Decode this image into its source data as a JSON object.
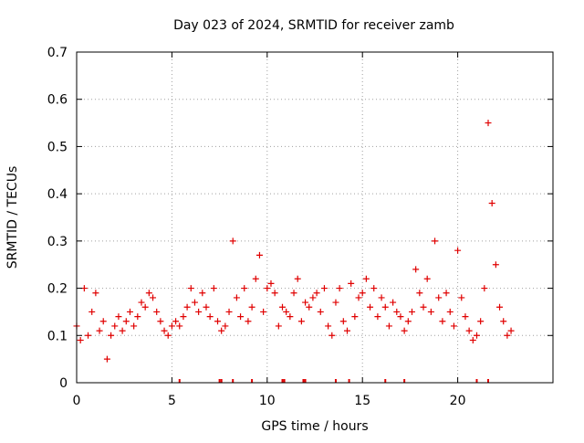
{
  "chart_data": {
    "type": "scatter",
    "title": "Day 023 of 2024, SRMTID for receiver zamb",
    "xlabel": "GPS time / hours",
    "ylabel": "SRMTID / TECUs",
    "xlim": [
      0,
      25
    ],
    "ylim": [
      0,
      0.7
    ],
    "x_ticks": [
      0,
      5,
      10,
      15,
      20
    ],
    "x_tick_labels": [
      "0",
      "5",
      "10",
      "15",
      "20"
    ],
    "y_ticks": [
      0,
      0.1,
      0.2,
      0.3,
      0.4,
      0.5,
      0.6,
      0.7
    ],
    "y_tick_labels": [
      "0",
      "0.1",
      "0.2",
      "0.3",
      "0.4",
      "0.5",
      "0.6",
      "0.7"
    ],
    "grid": true,
    "marker": "plus",
    "color": "#e00000",
    "series": [
      {
        "name": "SRMTID",
        "x": [
          0.0,
          0.2,
          0.4,
          0.6,
          0.8,
          1.0,
          1.2,
          1.4,
          1.6,
          1.8,
          2.0,
          2.2,
          2.4,
          2.6,
          2.8,
          3.0,
          3.2,
          3.4,
          3.6,
          3.8,
          4.0,
          4.2,
          4.4,
          4.6,
          4.8,
          5.0,
          5.2,
          5.4,
          5.6,
          5.8,
          6.0,
          6.2,
          6.4,
          6.6,
          6.8,
          7.0,
          7.2,
          7.4,
          7.6,
          7.8,
          8.0,
          8.2,
          8.4,
          8.6,
          8.8,
          9.0,
          9.2,
          9.4,
          9.6,
          9.8,
          10.0,
          10.2,
          10.4,
          10.6,
          10.8,
          11.0,
          11.2,
          11.4,
          11.6,
          11.8,
          12.0,
          12.2,
          12.4,
          12.6,
          12.8,
          13.0,
          13.2,
          13.4,
          13.6,
          13.8,
          14.0,
          14.2,
          14.4,
          14.6,
          14.8,
          15.0,
          15.2,
          15.4,
          15.6,
          15.8,
          16.0,
          16.2,
          16.4,
          16.6,
          16.8,
          17.0,
          17.2,
          17.4,
          17.6,
          17.8,
          18.0,
          18.2,
          18.4,
          18.6,
          18.8,
          19.0,
          19.2,
          19.4,
          19.6,
          19.8,
          20.0,
          20.2,
          20.4,
          20.6,
          20.8,
          21.0,
          21.2,
          21.4,
          21.6,
          21.8,
          22.0,
          22.2,
          22.4,
          22.6,
          22.8
        ],
        "y": [
          0.12,
          0.09,
          0.2,
          0.1,
          0.15,
          0.19,
          0.11,
          0.13,
          0.05,
          0.1,
          0.12,
          0.14,
          0.11,
          0.13,
          0.15,
          0.12,
          0.14,
          0.17,
          0.16,
          0.19,
          0.18,
          0.15,
          0.13,
          0.11,
          0.1,
          0.12,
          0.13,
          0.12,
          0.14,
          0.16,
          0.2,
          0.17,
          0.15,
          0.19,
          0.16,
          0.14,
          0.2,
          0.13,
          0.11,
          0.12,
          0.15,
          0.3,
          0.18,
          0.14,
          0.2,
          0.13,
          0.16,
          0.22,
          0.27,
          0.15,
          0.2,
          0.21,
          0.19,
          0.12,
          0.16,
          0.15,
          0.14,
          0.19,
          0.22,
          0.13,
          0.17,
          0.16,
          0.18,
          0.19,
          0.15,
          0.2,
          0.12,
          0.1,
          0.17,
          0.2,
          0.13,
          0.11,
          0.21,
          0.14,
          0.18,
          0.19,
          0.22,
          0.16,
          0.2,
          0.14,
          0.18,
          0.16,
          0.12,
          0.17,
          0.15,
          0.14,
          0.11,
          0.13,
          0.15,
          0.24,
          0.19,
          0.16,
          0.22,
          0.15,
          0.3,
          0.18,
          0.13,
          0.19,
          0.15,
          0.12,
          0.28,
          0.18,
          0.14,
          0.11,
          0.09,
          0.1,
          0.13,
          0.2,
          0.55,
          0.38,
          0.25,
          0.16,
          0.13,
          0.1,
          0.11
        ]
      }
    ],
    "rug_x": [
      5.4,
      7.5,
      7.6,
      8.2,
      9.2,
      10.8,
      10.9,
      11.9,
      12.0,
      13.6,
      14.3,
      16.2,
      17.2,
      21.0,
      21.6
    ]
  }
}
